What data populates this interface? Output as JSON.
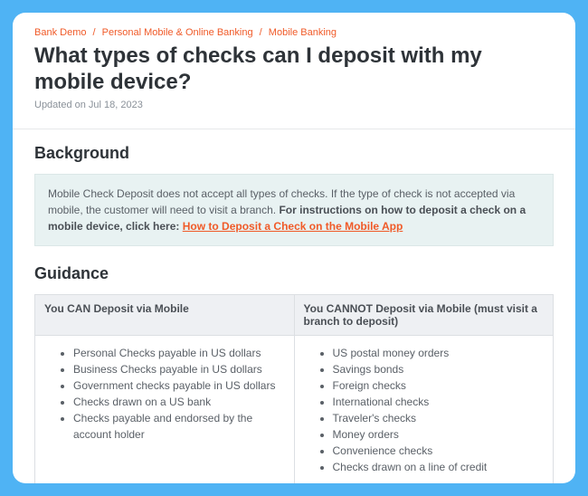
{
  "breadcrumb": {
    "items": [
      "Bank Demo",
      "Personal Mobile & Online Banking",
      "Mobile Banking"
    ],
    "separator": "/"
  },
  "title": "What types of checks can I deposit with my mobile device?",
  "updated": "Updated on Jul 18, 2023",
  "sections": {
    "background": {
      "heading": "Background",
      "callout_plain": "Mobile Check Deposit does not accept all types of checks. If the type of check is not accepted via mobile, the customer will need to visit a branch. ",
      "callout_bold": "For instructions on how to deposit a check on a mobile device, click here: ",
      "callout_link": "How to Deposit a Check on the Mobile App"
    },
    "guidance": {
      "heading": "Guidance",
      "col_can_header": "You CAN Deposit via Mobile",
      "col_cannot_header": "You CANNOT Deposit via Mobile (must visit a branch to deposit)",
      "can_items": [
        "Personal Checks payable in US dollars",
        "Business Checks payable in US dollars",
        "Government checks payable in US dollars",
        "Checks drawn on a US bank",
        "Checks payable and endorsed by the account holder"
      ],
      "cannot_items": [
        "US postal money orders",
        "Savings bonds",
        "Foreign checks",
        "International checks",
        "Traveler's checks",
        "Money orders",
        "Convenience checks",
        "Checks drawn on a line of credit"
      ]
    }
  },
  "colors": {
    "frame_bg": "#4fb3f4",
    "card_bg": "#ffffff",
    "accent": "#f05a28",
    "heading_text": "#2e3338",
    "body_text": "#5a6067",
    "muted_text": "#8a9199",
    "callout_bg": "#e8f2f2",
    "table_header_bg": "#eef0f3",
    "border": "#dcdfe3"
  },
  "typography": {
    "title_fontsize": 24,
    "section_fontsize": 18,
    "body_fontsize": 12,
    "meta_fontsize": 11
  }
}
